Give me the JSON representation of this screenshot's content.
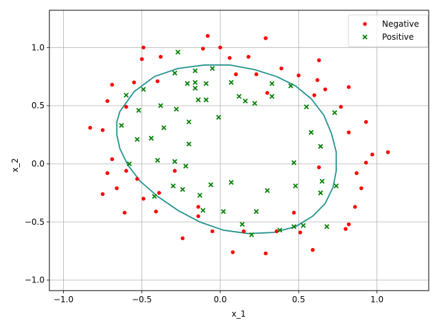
{
  "chart_data": {
    "type": "scatter",
    "xlabel": "x_1",
    "ylabel": "x_2",
    "xlim": [
      -1.09,
      1.33
    ],
    "ylim": [
      -1.09,
      1.32
    ],
    "grid": true,
    "legend_position": "top-right",
    "xticks": [
      -1.0,
      -0.5,
      0.0,
      0.5,
      1.0
    ],
    "xtick_labels": [
      "−1.0",
      "−0.5",
      "0.0",
      "0.5",
      "1.0"
    ],
    "yticks": [
      -1.0,
      -0.5,
      0.0,
      0.5,
      1.0
    ],
    "ytick_labels": [
      "−1.0",
      "−0.5",
      "0.0",
      "0.5",
      "1.0"
    ],
    "colors": {
      "negative": "#ff0000",
      "positive": "#008000",
      "boundary": "#21918c",
      "grid": "#b0b0b0"
    },
    "series": [
      {
        "name": "Negative",
        "marker": "circle",
        "color": "#ff0000",
        "points": [
          [
            -0.08,
            1.1
          ],
          [
            -0.49,
            1.0
          ],
          [
            -0.11,
            0.99
          ],
          [
            -0.0,
            1.0
          ],
          [
            0.29,
            1.08
          ],
          [
            -0.5,
            0.9
          ],
          [
            -0.38,
            0.92
          ],
          [
            0.06,
            0.91
          ],
          [
            0.18,
            0.92
          ],
          [
            0.39,
            0.82
          ],
          [
            0.63,
            0.89
          ],
          [
            0.1,
            0.77
          ],
          [
            0.23,
            0.77
          ],
          [
            0.5,
            0.76
          ],
          [
            0.62,
            0.72
          ],
          [
            -0.69,
            0.68
          ],
          [
            -0.55,
            0.7
          ],
          [
            -0.4,
            0.71
          ],
          [
            0.3,
            0.61
          ],
          [
            0.67,
            0.64
          ],
          [
            0.82,
            0.66
          ],
          [
            -0.72,
            0.54
          ],
          [
            -0.6,
            0.49
          ],
          [
            0.6,
            0.59
          ],
          [
            0.77,
            0.49
          ],
          [
            -0.83,
            0.31
          ],
          [
            -0.75,
            0.29
          ],
          [
            0.82,
            0.27
          ],
          [
            0.93,
            0.36
          ],
          [
            -0.69,
            0.04
          ],
          [
            0.97,
            0.08
          ],
          [
            0.93,
            0.01
          ],
          [
            -0.6,
            -0.06
          ],
          [
            -0.72,
            -0.08
          ],
          [
            0.63,
            -0.03
          ],
          [
            0.87,
            -0.08
          ],
          [
            -0.53,
            -0.13
          ],
          [
            -0.29,
            -0.06
          ],
          [
            -0.66,
            -0.21
          ],
          [
            -0.75,
            -0.26
          ],
          [
            -0.39,
            -0.25
          ],
          [
            0.9,
            -0.21
          ],
          [
            -0.49,
            -0.3
          ],
          [
            -0.41,
            -0.41
          ],
          [
            -0.61,
            -0.42
          ],
          [
            0.47,
            -0.42
          ],
          [
            0.86,
            -0.37
          ],
          [
            -0.14,
            -0.37
          ],
          [
            -0.14,
            -0.45
          ],
          [
            0.82,
            -0.52
          ],
          [
            0.8,
            -0.56
          ],
          [
            -0.05,
            -0.58
          ],
          [
            0.15,
            -0.58
          ],
          [
            0.36,
            -0.58
          ],
          [
            0.51,
            -0.59
          ],
          [
            -0.24,
            -0.64
          ],
          [
            0.08,
            -0.76
          ],
          [
            0.29,
            -0.77
          ],
          [
            0.59,
            -0.74
          ],
          [
            1.07,
            0.1
          ]
        ]
      },
      {
        "name": "Positive",
        "marker": "x",
        "color": "#008000",
        "points": [
          [
            -0.27,
            0.96
          ],
          [
            -0.05,
            0.82
          ],
          [
            -0.29,
            0.78
          ],
          [
            -0.16,
            0.8
          ],
          [
            -0.49,
            0.64
          ],
          [
            -0.21,
            0.69
          ],
          [
            -0.16,
            0.7
          ],
          [
            -0.09,
            0.69
          ],
          [
            0.07,
            0.7
          ],
          [
            0.33,
            0.69
          ],
          [
            -0.16,
            0.65
          ],
          [
            0.45,
            0.67
          ],
          [
            -0.6,
            0.59
          ],
          [
            -0.14,
            0.55
          ],
          [
            -0.09,
            0.55
          ],
          [
            0.16,
            0.54
          ],
          [
            0.12,
            0.58
          ],
          [
            0.22,
            0.52
          ],
          [
            0.33,
            0.58
          ],
          [
            -0.38,
            0.5
          ],
          [
            -0.52,
            0.46
          ],
          [
            -0.28,
            0.47
          ],
          [
            0.55,
            0.49
          ],
          [
            0.73,
            0.44
          ],
          [
            -0.2,
            0.36
          ],
          [
            -0.01,
            0.4
          ],
          [
            -0.63,
            0.33
          ],
          [
            -0.36,
            0.31
          ],
          [
            0.58,
            0.27
          ],
          [
            -0.44,
            0.22
          ],
          [
            -0.53,
            0.21
          ],
          [
            -0.2,
            0.17
          ],
          [
            0.64,
            0.15
          ],
          [
            -0.4,
            0.03
          ],
          [
            -0.29,
            0.02
          ],
          [
            -0.58,
            0.0
          ],
          [
            -0.22,
            -0.02
          ],
          [
            0.47,
            0.01
          ],
          [
            0.65,
            -0.15
          ],
          [
            -0.06,
            -0.18
          ],
          [
            -0.3,
            -0.19
          ],
          [
            0.07,
            -0.16
          ],
          [
            -0.24,
            -0.22
          ],
          [
            0.48,
            -0.19
          ],
          [
            0.74,
            -0.19
          ],
          [
            0.3,
            -0.23
          ],
          [
            -0.13,
            -0.27
          ],
          [
            0.64,
            -0.25
          ],
          [
            -0.42,
            -0.28
          ],
          [
            -0.11,
            -0.4
          ],
          [
            0.02,
            -0.41
          ],
          [
            0.23,
            -0.41
          ],
          [
            0.14,
            -0.52
          ],
          [
            0.47,
            -0.54
          ],
          [
            0.53,
            -0.53
          ],
          [
            0.68,
            -0.54
          ],
          [
            0.38,
            -0.57
          ],
          [
            0.2,
            -0.61
          ]
        ]
      }
    ],
    "decision_boundary": [
      [
        -0.64,
        0.45
      ],
      [
        -0.55,
        0.62
      ],
      [
        -0.42,
        0.75
      ],
      [
        -0.27,
        0.82
      ],
      [
        -0.1,
        0.85
      ],
      [
        0.06,
        0.85
      ],
      [
        0.22,
        0.81
      ],
      [
        0.36,
        0.75
      ],
      [
        0.48,
        0.67
      ],
      [
        0.58,
        0.56
      ],
      [
        0.66,
        0.42
      ],
      [
        0.71,
        0.26
      ],
      [
        0.74,
        0.1
      ],
      [
        0.74,
        -0.06
      ],
      [
        0.72,
        -0.2
      ],
      [
        0.67,
        -0.34
      ],
      [
        0.59,
        -0.45
      ],
      [
        0.48,
        -0.54
      ],
      [
        0.34,
        -0.59
      ],
      [
        0.18,
        -0.6
      ],
      [
        0.02,
        -0.57
      ],
      [
        -0.13,
        -0.5
      ],
      [
        -0.27,
        -0.4
      ],
      [
        -0.4,
        -0.28
      ],
      [
        -0.51,
        -0.15
      ],
      [
        -0.59,
        -0.01
      ],
      [
        -0.64,
        0.13
      ],
      [
        -0.66,
        0.25
      ],
      [
        -0.66,
        0.36
      ],
      [
        -0.64,
        0.45
      ]
    ],
    "legend": [
      {
        "label": "Negative",
        "marker": "circle",
        "color": "#ff0000"
      },
      {
        "label": "Positive",
        "marker": "x",
        "color": "#008000"
      }
    ]
  }
}
